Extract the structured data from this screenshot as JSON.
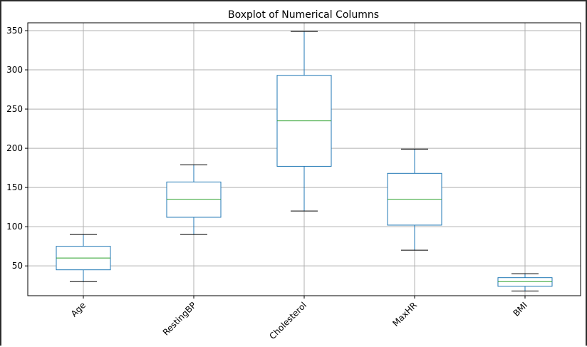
{
  "chart_data": {
    "type": "box",
    "title": "Boxplot of Numerical Columns",
    "xlabel": "",
    "ylabel": "",
    "grid": true,
    "ylim": [
      12,
      360
    ],
    "y_ticks": [
      50,
      100,
      150,
      200,
      250,
      300,
      350
    ],
    "categories": [
      "Age",
      "RestingBP",
      "Cholesterol",
      "MaxHR",
      "BMI"
    ],
    "boxes": [
      {
        "category": "Age",
        "whisker_low": 30,
        "q1": 45,
        "median": 60,
        "q3": 75,
        "whisker_high": 90
      },
      {
        "category": "RestingBP",
        "whisker_low": 90,
        "q1": 112,
        "median": 135,
        "q3": 157,
        "whisker_high": 179
      },
      {
        "category": "Cholesterol",
        "whisker_low": 120,
        "q1": 177,
        "median": 235,
        "q3": 293,
        "whisker_high": 349
      },
      {
        "category": "MaxHR",
        "whisker_low": 70,
        "q1": 102,
        "median": 135,
        "q3": 168,
        "whisker_high": 199
      },
      {
        "category": "BMI",
        "whisker_low": 18,
        "q1": 24,
        "median": 30,
        "q3": 35,
        "whisker_high": 40
      }
    ],
    "colors": {
      "box": "#1f77b4",
      "median": "#2ca02c",
      "caps": "#000000",
      "grid": "#b0b0b0",
      "axes": "#000000"
    }
  }
}
